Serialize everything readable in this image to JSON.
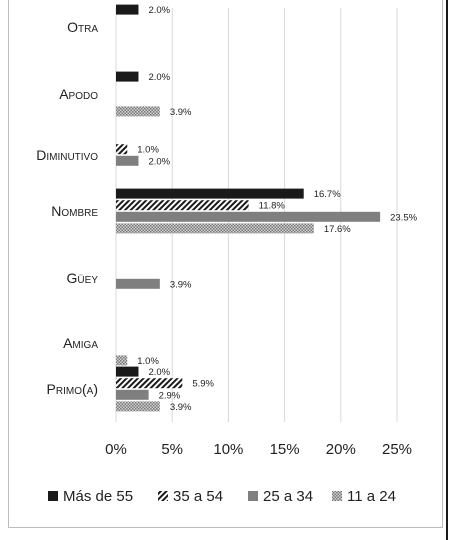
{
  "chart_data": {
    "type": "bar",
    "orientation": "horizontal",
    "categories": [
      "Otra",
      "Apodo",
      "Diminutivo",
      "Nombre",
      "Güey",
      "Amiga",
      "Primo(a)"
    ],
    "series": [
      {
        "name": "Más de 55",
        "values": [
          2.0,
          2.0,
          null,
          16.7,
          null,
          null,
          2.0
        ],
        "labels": [
          "2.0%",
          "2.0%",
          "",
          "16.7%",
          "",
          "",
          "2.0%"
        ],
        "color": "#1a1a1a",
        "pattern": "solid"
      },
      {
        "name": "35 a 54",
        "values": [
          null,
          null,
          1.0,
          11.8,
          null,
          null,
          5.9
        ],
        "labels": [
          "",
          "",
          "1.0%",
          "11.8%",
          "",
          "",
          "5.9%"
        ],
        "color": "#1a1a1a",
        "pattern": "diagonal"
      },
      {
        "name": "25 a 34",
        "values": [
          null,
          null,
          2.0,
          23.5,
          3.9,
          null,
          2.9
        ],
        "labels": [
          "",
          "",
          "2.0%",
          "23.5%",
          "3.9%",
          "",
          "2.9%"
        ],
        "color": "#7f7f7f",
        "pattern": "solid"
      },
      {
        "name": "11 a 24",
        "values": [
          null,
          3.9,
          null,
          17.6,
          null,
          1.0,
          3.9
        ],
        "labels": [
          "",
          "3.9%",
          "",
          "17.6%",
          "",
          "1.0%",
          "3.9%"
        ],
        "color": "#a6a6a6",
        "pattern": "dotted"
      }
    ],
    "xlim": [
      0,
      25
    ],
    "ticks": [
      "0%",
      "5%",
      "10%",
      "15%",
      "20%",
      "25%"
    ],
    "tick_values": [
      0,
      5,
      10,
      15,
      20,
      25
    ],
    "grid": true,
    "legend_position": "bottom"
  }
}
